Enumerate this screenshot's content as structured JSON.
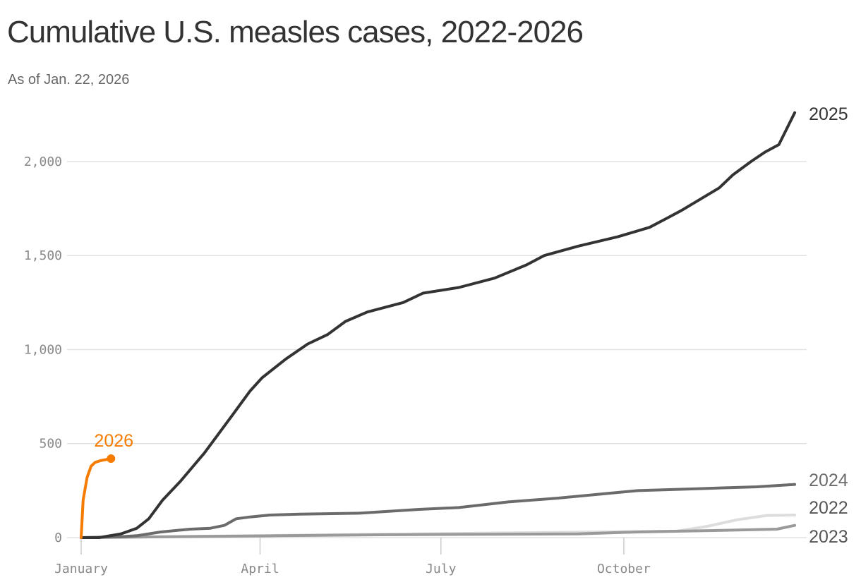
{
  "chart_data": {
    "type": "line",
    "title": "Cumulative U.S. measles cases, 2022-2026",
    "subtitle": "As of Jan. 22, 2026",
    "xlim": [
      0,
      365
    ],
    "xticks": [
      {
        "value": 0,
        "label": "January"
      },
      {
        "value": 90,
        "label": "April"
      },
      {
        "value": 181,
        "label": "July"
      },
      {
        "value": 273,
        "label": "October"
      }
    ],
    "ylim": [
      0,
      2300
    ],
    "yticks": [
      0,
      {
        "value": 500,
        "label": "500"
      },
      {
        "value": 1000,
        "label": "1,000"
      },
      {
        "value": 1500,
        "label": "1,500"
      },
      {
        "value": 2000,
        "label": "2,000"
      }
    ],
    "grid": true,
    "series": [
      {
        "name": "2022",
        "color": "#dddddd",
        "x": [
          0,
          300,
          315,
          330,
          345,
          359
        ],
        "values": [
          0,
          35,
          60,
          95,
          118,
          120
        ]
      },
      {
        "name": "2023",
        "color": "#9a9a9a",
        "x": [
          0,
          100,
          150,
          250,
          280,
          330,
          350,
          359
        ],
        "values": [
          0,
          10,
          15,
          20,
          30,
          40,
          45,
          65
        ]
      },
      {
        "name": "2024",
        "color": "#6b6b6b",
        "x": [
          0,
          20,
          28,
          40,
          55,
          65,
          72,
          78,
          85,
          95,
          110,
          140,
          170,
          190,
          215,
          240,
          270,
          280,
          310,
          340,
          359
        ],
        "values": [
          0,
          5,
          10,
          30,
          45,
          50,
          65,
          100,
          110,
          120,
          125,
          130,
          150,
          160,
          190,
          210,
          240,
          250,
          260,
          270,
          283
        ]
      },
      {
        "name": "2025",
        "color": "#333333",
        "x": [
          0,
          9,
          20,
          28,
          34,
          41,
          50,
          62,
          69,
          76,
          85,
          91,
          103,
          114,
          124,
          133,
          144,
          162,
          172,
          190,
          208,
          224,
          233,
          250,
          270,
          286,
          295,
          302,
          321,
          328,
          337,
          344,
          351,
          359
        ],
        "values": [
          0,
          0,
          20,
          50,
          100,
          200,
          300,
          450,
          550,
          650,
          780,
          850,
          950,
          1030,
          1080,
          1150,
          1200,
          1250,
          1300,
          1330,
          1380,
          1450,
          1500,
          1550,
          1600,
          1650,
          1700,
          1740,
          1860,
          1930,
          2000,
          2050,
          2090,
          2260
        ]
      },
      {
        "name": "2026",
        "color": "#f57c00",
        "x": [
          0,
          1,
          3,
          5,
          7,
          10,
          15
        ],
        "values": [
          0,
          200,
          320,
          380,
          400,
          410,
          420
        ]
      }
    ]
  }
}
